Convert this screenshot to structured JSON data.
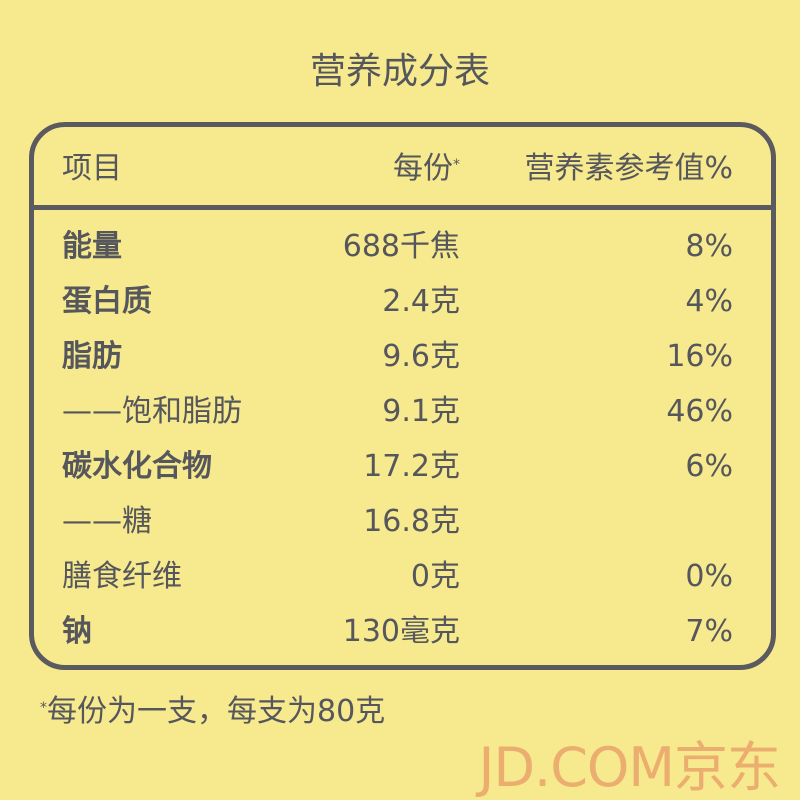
{
  "title": "营养成分表",
  "header": {
    "item": "项目",
    "per_serving": "每份",
    "per_serving_mark": "*",
    "nrv": "营养素参考值%"
  },
  "rows": [
    {
      "name": "能量",
      "amount": "688千焦",
      "nrv": "8%",
      "bold": true
    },
    {
      "name": "蛋白质",
      "amount": "2.4克",
      "nrv": "4%",
      "bold": true
    },
    {
      "name": "脂肪",
      "amount": "9.6克",
      "nrv": "16%",
      "bold": true
    },
    {
      "name": "——饱和脂肪",
      "amount": "9.1克",
      "nrv": "46%",
      "bold": false
    },
    {
      "name": "碳水化合物",
      "amount": "17.2克",
      "nrv": "6%",
      "bold": true
    },
    {
      "name": "——糖",
      "amount": "16.8克",
      "nrv": "",
      "bold": false
    },
    {
      "name": "膳食纤维",
      "amount": "0克",
      "nrv": "0%",
      "bold": false
    },
    {
      "name": "钠",
      "amount": "130毫克",
      "nrv": "7%",
      "bold": true
    }
  ],
  "footnote": {
    "mark": "*",
    "text": "每份为一支，每支为80克"
  },
  "watermark": "JD.COM京东",
  "colors": {
    "background": "#f7e98e",
    "text": "#55575c",
    "border": "#5b5b5f",
    "watermark": "#e9a46a"
  }
}
